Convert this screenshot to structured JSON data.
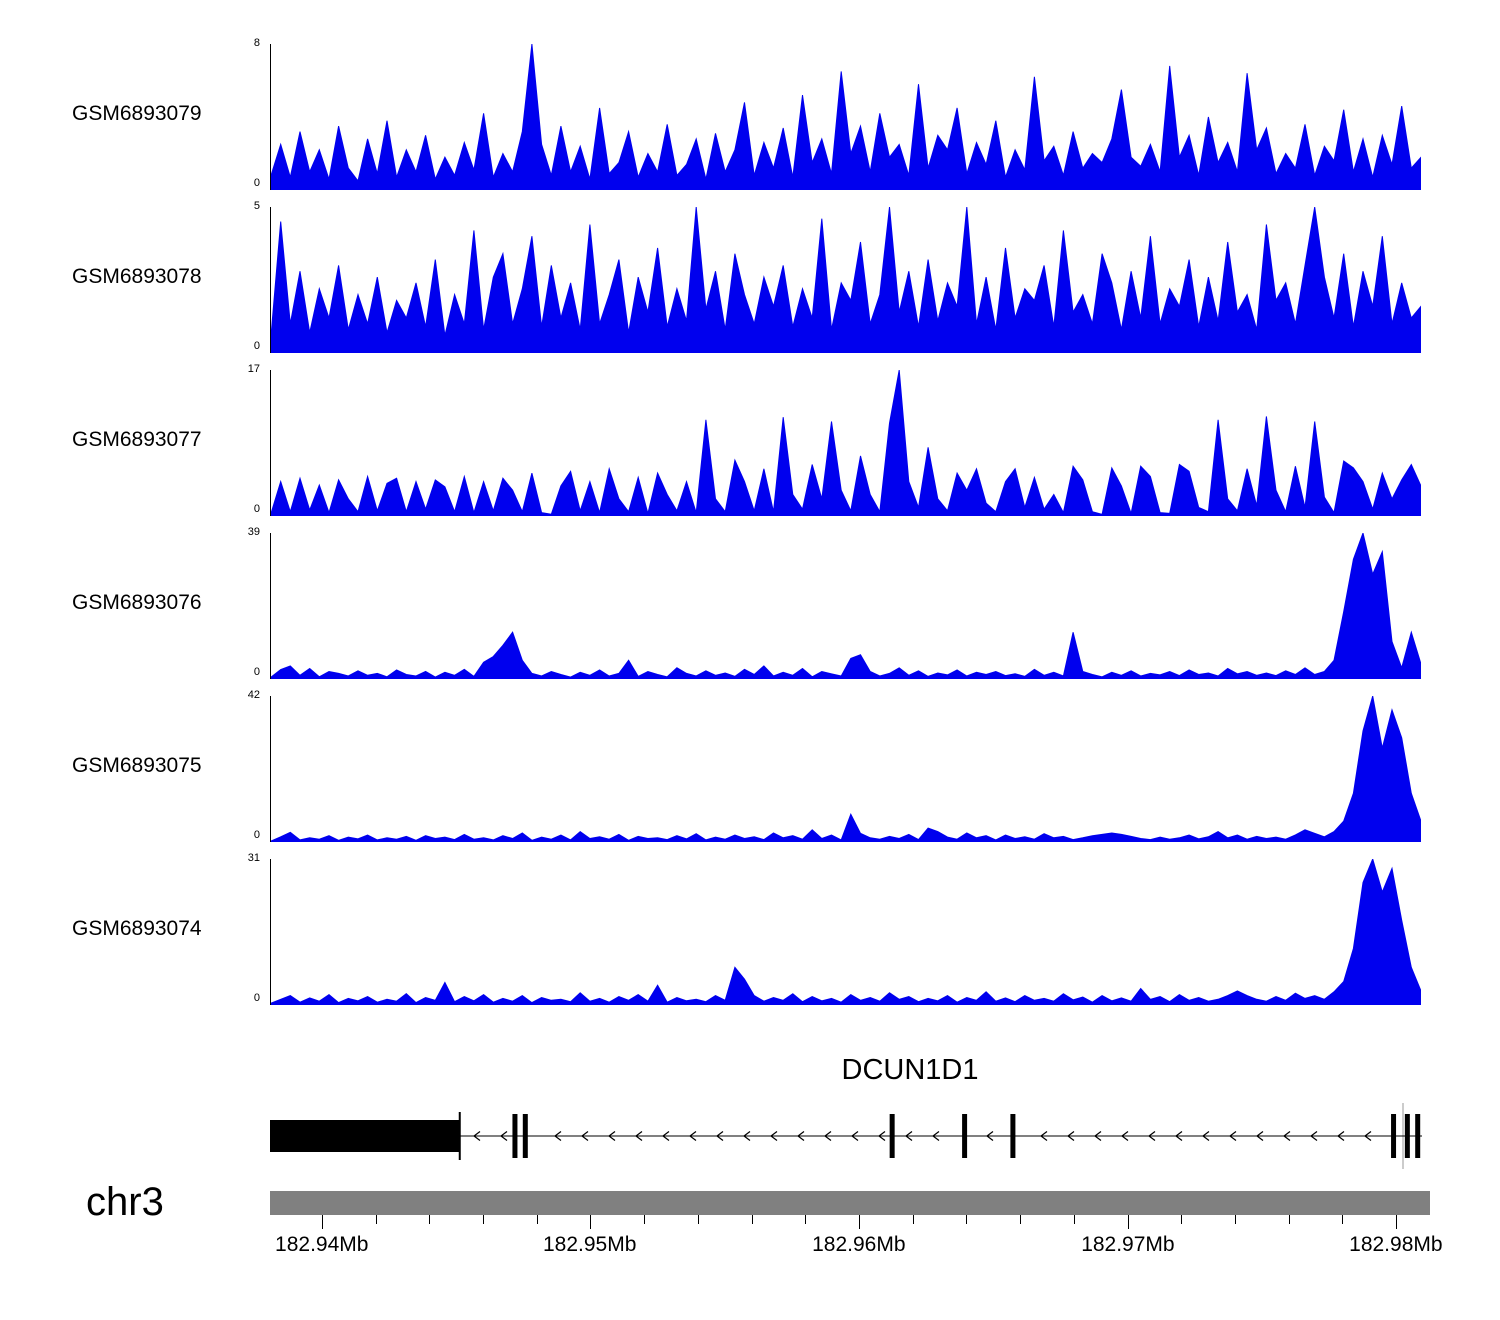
{
  "chart_data": {
    "type": "area",
    "title": "",
    "x_unit": "Mb",
    "x_range_mb": [
      182.938,
      182.981
    ],
    "chromosome_label": "chr3",
    "color": "#0000EE",
    "y_zero_label": "0",
    "tracks": [
      {
        "label": "GSM6893079",
        "ymax": 8,
        "values": [
          0.8,
          2.5,
          0.7,
          3.2,
          1.0,
          2.2,
          0.6,
          3.5,
          1.2,
          0.5,
          2.8,
          0.9,
          3.8,
          0.7,
          2.2,
          1.0,
          3.0,
          0.6,
          1.8,
          0.8,
          2.6,
          1.1,
          4.2,
          0.7,
          2.0,
          1.0,
          3.2,
          8.0,
          2.5,
          0.8,
          3.5,
          1.0,
          2.4,
          0.6,
          4.5,
          0.9,
          1.5,
          3.2,
          0.7,
          2.0,
          1.0,
          3.6,
          0.8,
          1.4,
          2.8,
          0.6,
          3.1,
          1.0,
          2.2,
          4.8,
          0.8,
          2.6,
          1.2,
          3.4,
          0.7,
          5.2,
          1.5,
          2.8,
          0.9,
          6.5,
          2.0,
          3.5,
          1.0,
          4.2,
          1.8,
          2.5,
          0.8,
          5.8,
          1.2,
          3.0,
          2.2,
          4.5,
          0.9,
          2.6,
          1.4,
          3.8,
          0.7,
          2.2,
          1.1,
          6.2,
          1.6,
          2.4,
          0.8,
          3.2,
          1.2,
          2.0,
          1.5,
          2.8,
          5.5,
          1.8,
          1.3,
          2.5,
          1.0,
          6.8,
          1.8,
          3.0,
          0.8,
          4.0,
          1.5,
          2.6,
          1.0,
          6.4,
          2.2,
          3.4,
          0.9,
          2.0,
          1.2,
          3.6,
          0.8,
          2.4,
          1.6,
          4.4,
          1.0,
          2.8,
          0.7,
          3.0,
          1.4,
          4.6,
          1.2,
          1.8
        ]
      },
      {
        "label": "GSM6893078",
        "ymax": 5,
        "values": [
          0.6,
          4.5,
          1.0,
          2.8,
          0.7,
          2.2,
          1.2,
          3.0,
          0.8,
          2.0,
          1.0,
          2.6,
          0.7,
          1.8,
          1.2,
          2.4,
          0.9,
          3.2,
          0.6,
          2.0,
          1.0,
          4.2,
          0.8,
          2.6,
          3.4,
          1.0,
          2.2,
          4.0,
          0.9,
          3.0,
          1.2,
          2.4,
          0.8,
          4.4,
          1.0,
          2.0,
          3.2,
          0.7,
          2.6,
          1.4,
          3.6,
          0.9,
          2.2,
          1.1,
          5.0,
          1.5,
          2.8,
          0.8,
          3.4,
          2.0,
          1.0,
          2.6,
          1.6,
          3.0,
          0.9,
          2.2,
          1.2,
          4.6,
          0.8,
          2.4,
          1.8,
          3.8,
          1.0,
          2.0,
          5.0,
          1.4,
          2.8,
          0.9,
          3.2,
          1.1,
          2.4,
          1.6,
          5.0,
          1.0,
          2.6,
          0.8,
          3.6,
          1.2,
          2.2,
          1.8,
          3.0,
          0.9,
          4.2,
          1.4,
          2.0,
          1.0,
          3.4,
          2.4,
          0.8,
          2.8,
          1.2,
          4.0,
          1.0,
          2.2,
          1.6,
          3.2,
          0.9,
          2.6,
          1.1,
          3.8,
          1.4,
          2.0,
          0.8,
          4.4,
          1.8,
          2.4,
          1.0,
          3.0,
          5.0,
          2.6,
          1.2,
          3.4,
          0.9,
          2.8,
          1.6,
          4.0,
          1.0,
          2.4,
          1.2,
          1.6
        ]
      },
      {
        "label": "GSM6893077",
        "ymax": 17,
        "values": [
          0.3,
          4.0,
          0.5,
          4.4,
          0.7,
          3.6,
          0.4,
          4.2,
          2.0,
          0.5,
          4.6,
          0.6,
          3.8,
          4.4,
          0.5,
          4.0,
          0.8,
          4.2,
          3.4,
          0.5,
          4.6,
          0.4,
          4.0,
          0.6,
          4.4,
          3.0,
          0.5,
          5.0,
          0.4,
          0.2,
          3.5,
          5.2,
          0.6,
          4.0,
          0.4,
          5.5,
          2.0,
          0.5,
          4.5,
          0.3,
          5.0,
          2.5,
          0.6,
          4.0,
          0.4,
          11.2,
          2.0,
          0.5,
          6.5,
          4.0,
          0.6,
          5.5,
          0.5,
          11.5,
          2.5,
          0.8,
          6.0,
          2.0,
          11.0,
          3.0,
          0.6,
          7.0,
          2.5,
          0.5,
          10.8,
          17.0,
          4.0,
          1.0,
          8.0,
          2.0,
          0.6,
          5.0,
          3.0,
          5.5,
          1.5,
          0.5,
          4.0,
          5.5,
          1.0,
          4.5,
          0.8,
          2.5,
          0.4,
          5.8,
          4.2,
          0.5,
          0.2,
          5.6,
          3.5,
          0.3,
          5.8,
          4.6,
          0.4,
          0.3,
          6.0,
          5.2,
          1.0,
          0.5,
          11.2,
          2.0,
          0.6,
          5.5,
          1.2,
          11.6,
          3.0,
          0.5,
          5.8,
          1.0,
          11.0,
          2.2,
          0.4,
          6.4,
          5.6,
          4.0,
          0.8,
          5.0,
          2.0,
          4.2,
          6.0,
          3.5
        ]
      },
      {
        "label": "GSM6893076",
        "ymax": 39,
        "values": [
          0.5,
          2.5,
          3.5,
          1.0,
          2.8,
          0.6,
          2.0,
          1.5,
          0.8,
          2.2,
          1.0,
          1.5,
          0.6,
          2.4,
          1.2,
          0.8,
          2.0,
          0.5,
          1.8,
          1.0,
          2.6,
          0.7,
          4.5,
          6.0,
          9.0,
          12.5,
          5.0,
          1.5,
          0.8,
          2.0,
          1.2,
          0.5,
          1.8,
          1.0,
          2.4,
          0.8,
          1.5,
          5.0,
          0.7,
          2.0,
          1.2,
          0.6,
          3.0,
          1.5,
          0.8,
          2.2,
          1.0,
          1.6,
          0.7,
          2.6,
          1.2,
          3.5,
          0.8,
          1.8,
          1.0,
          2.8,
          0.6,
          2.0,
          1.4,
          0.8,
          5.5,
          6.5,
          2.0,
          0.8,
          1.5,
          3.0,
          1.0,
          2.2,
          0.7,
          1.6,
          1.1,
          2.4,
          0.8,
          1.8,
          1.2,
          2.0,
          0.9,
          1.4,
          0.7,
          2.6,
          1.0,
          1.8,
          0.8,
          12.5,
          2.0,
          1.2,
          0.6,
          1.8,
          1.0,
          2.2,
          0.8,
          1.5,
          1.1,
          2.0,
          0.9,
          2.4,
          1.2,
          1.6,
          0.8,
          2.8,
          1.4,
          2.0,
          1.0,
          1.6,
          0.9,
          2.2,
          1.2,
          3.0,
          1.2,
          2.0,
          5.0,
          18.0,
          32.0,
          39.0,
          28.0,
          34.0,
          10.0,
          3.0,
          12.5,
          4.0
        ]
      },
      {
        "label": "GSM6893075",
        "ymax": 42,
        "values": [
          0.3,
          1.5,
          2.8,
          0.6,
          1.2,
          0.8,
          1.8,
          0.5,
          1.4,
          0.9,
          2.0,
          0.6,
          1.2,
          0.8,
          1.6,
          0.5,
          1.8,
          1.0,
          1.4,
          0.7,
          2.2,
          0.8,
          1.2,
          0.6,
          1.8,
          1.0,
          2.6,
          0.5,
          1.4,
          0.8,
          2.0,
          0.6,
          3.0,
          1.0,
          1.5,
          0.8,
          2.2,
          0.5,
          1.6,
          1.0,
          1.2,
          0.7,
          1.8,
          0.9,
          2.4,
          0.6,
          1.4,
          0.8,
          2.0,
          1.0,
          1.5,
          0.7,
          2.6,
          1.2,
          1.8,
          0.8,
          3.5,
          1.0,
          2.0,
          0.6,
          8.0,
          2.5,
          1.2,
          0.8,
          1.6,
          1.0,
          2.2,
          0.7,
          4.0,
          3.0,
          1.4,
          0.8,
          2.6,
          1.2,
          1.8,
          0.6,
          2.0,
          1.0,
          1.5,
          0.8,
          2.4,
          1.2,
          1.6,
          0.7,
          1.2,
          1.8,
          2.2,
          2.6,
          2.2,
          1.6,
          1.0,
          0.7,
          1.4,
          0.8,
          1.2,
          2.0,
          0.9,
          1.5,
          3.0,
          1.2,
          2.0,
          0.8,
          1.6,
          1.0,
          1.4,
          0.8,
          2.0,
          3.5,
          2.5,
          1.5,
          3.0,
          6.0,
          14.0,
          32.0,
          42.0,
          27.0,
          38.0,
          30.0,
          14.0,
          6.0
        ]
      },
      {
        "label": "GSM6893074",
        "ymax": 31,
        "values": [
          0.4,
          1.2,
          2.0,
          0.6,
          1.5,
          0.8,
          2.2,
          0.5,
          1.4,
          0.9,
          1.8,
          0.6,
          1.2,
          0.8,
          2.4,
          0.5,
          1.6,
          1.0,
          4.8,
          0.7,
          1.8,
          0.9,
          2.2,
          0.6,
          1.4,
          0.8,
          2.0,
          0.5,
          1.6,
          1.0,
          1.2,
          0.7,
          2.6,
          0.8,
          1.4,
          0.6,
          1.8,
          1.0,
          2.2,
          0.8,
          4.2,
          0.6,
          1.6,
          0.9,
          1.2,
          0.7,
          2.0,
          1.0,
          8.0,
          5.5,
          2.0,
          0.8,
          1.6,
          1.0,
          2.4,
          0.7,
          1.8,
          0.9,
          1.4,
          0.6,
          2.2,
          1.0,
          1.6,
          0.8,
          2.6,
          1.2,
          1.8,
          0.7,
          1.4,
          0.9,
          2.0,
          0.6,
          1.6,
          1.0,
          2.8,
          0.8,
          1.5,
          0.7,
          2.0,
          1.0,
          1.4,
          0.8,
          2.4,
          1.1,
          1.7,
          0.6,
          2.0,
          0.9,
          1.5,
          0.8,
          3.5,
          1.2,
          1.8,
          0.7,
          2.2,
          1.0,
          1.6,
          0.8,
          1.2,
          2.0,
          3.0,
          2.0,
          1.2,
          0.8,
          1.8,
          1.0,
          2.5,
          1.4,
          2.0,
          1.2,
          2.8,
          5.0,
          12.0,
          26.0,
          31.0,
          24.0,
          29.0,
          18.0,
          8.0,
          3.0
        ]
      }
    ],
    "gene": {
      "name": "DCUN1D1",
      "strand": "-",
      "thick_exon_end": 0.165,
      "exon_bars": [
        0.165,
        0.213,
        0.222,
        0.541,
        0.604,
        0.646,
        0.977,
        0.989,
        0.998
      ]
    },
    "ruler": {
      "ticks": [
        {
          "f": 0.045,
          "label": "182.94Mb"
        },
        {
          "f": 0.092,
          "label": ""
        },
        {
          "f": 0.138,
          "label": ""
        },
        {
          "f": 0.185,
          "label": ""
        },
        {
          "f": 0.232,
          "label": ""
        },
        {
          "f": 0.278,
          "label": "182.95Mb"
        },
        {
          "f": 0.325,
          "label": ""
        },
        {
          "f": 0.372,
          "label": ""
        },
        {
          "f": 0.419,
          "label": ""
        },
        {
          "f": 0.465,
          "label": ""
        },
        {
          "f": 0.512,
          "label": "182.96Mb"
        },
        {
          "f": 0.559,
          "label": ""
        },
        {
          "f": 0.605,
          "label": ""
        },
        {
          "f": 0.652,
          "label": ""
        },
        {
          "f": 0.699,
          "label": ""
        },
        {
          "f": 0.746,
          "label": "182.97Mb"
        },
        {
          "f": 0.792,
          "label": ""
        },
        {
          "f": 0.839,
          "label": ""
        },
        {
          "f": 0.886,
          "label": ""
        },
        {
          "f": 0.932,
          "label": ""
        },
        {
          "f": 0.979,
          "label": "182.98Mb"
        }
      ]
    }
  }
}
